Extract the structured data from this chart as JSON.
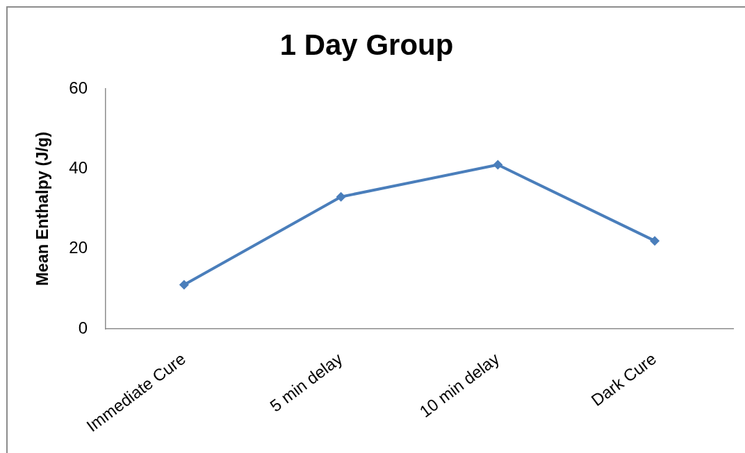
{
  "chart_data": {
    "type": "line",
    "title": "1 Day Group",
    "ylabel": "Mean Enthalpy (J/g)",
    "categories": [
      "Immediate Cure",
      "5 min delay",
      "10 min delay",
      "Dark Cure"
    ],
    "series": [
      {
        "color": "#4a7ebb",
        "values": [
          11,
          33,
          41,
          22
        ]
      }
    ],
    "ylim": [
      0,
      60
    ],
    "yticks": [
      0,
      20,
      40,
      60
    ],
    "marker": "diamond",
    "line_style": "solid"
  }
}
